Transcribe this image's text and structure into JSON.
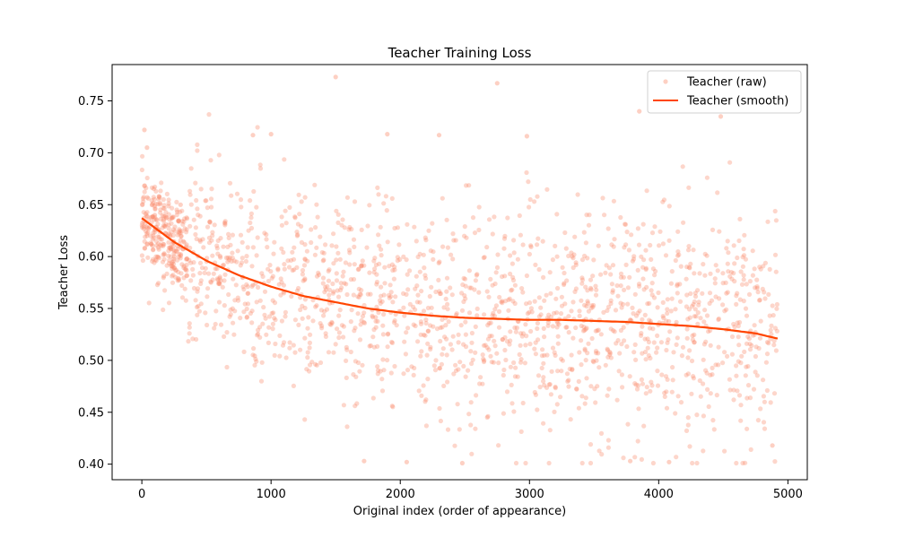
{
  "chart_data": {
    "type": "scatter",
    "title": "Teacher Training Loss",
    "xlabel": "Original index (order of appearance)",
    "ylabel": "Teacher Loss",
    "xlim": [
      -230,
      5150
    ],
    "ylim": [
      0.385,
      0.785
    ],
    "xticks": [
      0,
      1000,
      2000,
      3000,
      4000,
      5000
    ],
    "yticks": [
      0.4,
      0.45,
      0.5,
      0.55,
      0.6,
      0.65,
      0.7,
      0.75
    ],
    "grid": false,
    "legend_position": "top-right",
    "colors": {
      "raw": "#fa8a6a",
      "smooth": "#ff4500"
    },
    "series": [
      {
        "name": "Teacher (raw)",
        "kind": "scatter",
        "approx_count": 1900,
        "x_range": [
          0,
          4920
        ],
        "spread_sd_note": "points scatter around the smooth trend, widening over time",
        "sample_points": [
          [
            20,
            0.722
          ],
          [
            40,
            0.705
          ],
          [
            1500,
            0.773
          ],
          [
            2750,
            0.767
          ],
          [
            3850,
            0.74
          ],
          [
            4480,
            0.735
          ],
          [
            860,
            0.717
          ],
          [
            1000,
            0.718
          ],
          [
            1900,
            0.718
          ],
          [
            2300,
            0.717
          ],
          [
            2980,
            0.716
          ],
          [
            1720,
            0.403
          ],
          [
            2050,
            0.402
          ],
          [
            2480,
            0.401
          ],
          [
            3780,
            0.403
          ],
          [
            4080,
            0.402
          ],
          [
            4880,
            0.418
          ],
          [
            100,
            0.64
          ],
          [
            200,
            0.62
          ],
          [
            300,
            0.65
          ]
        ]
      },
      {
        "name": "Teacher (smooth)",
        "kind": "line",
        "x": [
          0,
          250,
          500,
          750,
          1000,
          1250,
          1500,
          1750,
          2000,
          2250,
          2500,
          2750,
          3000,
          3250,
          3500,
          3750,
          4000,
          4250,
          4500,
          4750,
          4920
        ],
        "y": [
          0.637,
          0.614,
          0.596,
          0.582,
          0.571,
          0.562,
          0.556,
          0.55,
          0.546,
          0.543,
          0.541,
          0.54,
          0.539,
          0.539,
          0.538,
          0.537,
          0.535,
          0.533,
          0.53,
          0.526,
          0.521
        ]
      }
    ]
  }
}
